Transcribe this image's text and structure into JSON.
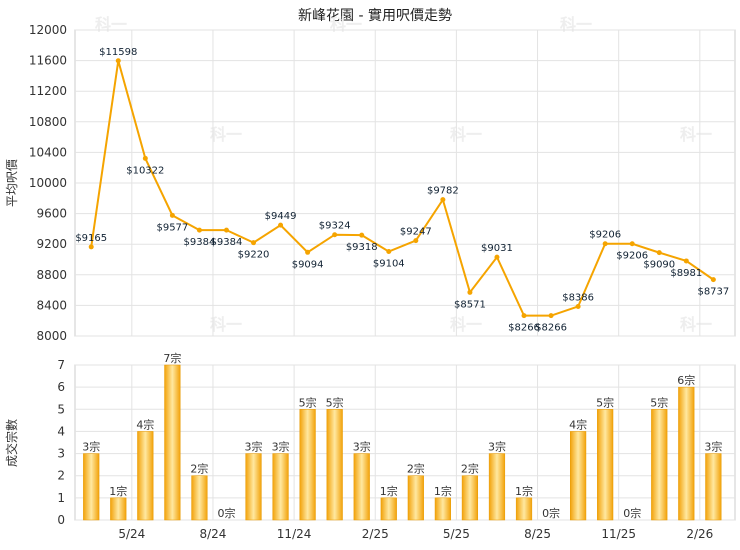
{
  "title": "新峰花園 - 實用呎價走勢",
  "watermark": "科一",
  "colors": {
    "line": "#f5a400",
    "bar": "#f2a20a",
    "barLight": "#ffe8a0",
    "grid": "#e3e3e3"
  },
  "chart_data": [
    {
      "type": "line",
      "ylabel": "平均呎價",
      "ylim": [
        8000,
        12000
      ],
      "yticks": [
        8000,
        8400,
        8800,
        9200,
        9600,
        10000,
        10400,
        10800,
        11200,
        11600,
        12000
      ],
      "values": [
        9165,
        11598,
        10322,
        9577,
        9384,
        9384,
        9220,
        9449,
        9094,
        9324,
        9318,
        9104,
        9247,
        9782,
        8571,
        9031,
        8266,
        8266,
        8386,
        9206,
        9206,
        9090,
        8981,
        8737
      ],
      "labels": [
        "$9165",
        "$11598",
        "$10322",
        "$9577",
        "$9384",
        "$9384",
        "$9220",
        "$9449",
        "$9094",
        "$9324",
        "$9318",
        "$9104",
        "$9247",
        "$9782",
        "$8571",
        "$9031",
        "$8266",
        "$8266",
        "$8386",
        "$9206",
        "$9206",
        "$9090",
        "$8981",
        "$8737"
      ]
    },
    {
      "type": "bar",
      "ylabel": "成交宗數",
      "ylim": [
        0,
        7
      ],
      "yticks": [
        0,
        1,
        2,
        3,
        4,
        5,
        6,
        7
      ],
      "values": [
        3,
        1,
        4,
        7,
        2,
        0,
        3,
        3,
        5,
        5,
        3,
        1,
        2,
        1,
        2,
        3,
        1,
        0,
        4,
        5,
        0,
        5,
        6,
        3
      ],
      "labels": [
        "3宗",
        "1宗",
        "4宗",
        "7宗",
        "2宗",
        "0宗",
        "3宗",
        "3宗",
        "5宗",
        "5宗",
        "3宗",
        "1宗",
        "2宗",
        "1宗",
        "2宗",
        "3宗",
        "1宗",
        "0宗",
        "4宗",
        "5宗",
        "0宗",
        "5宗",
        "6宗",
        "3宗"
      ],
      "xticks": [
        "5/24",
        "8/24",
        "11/24",
        "2/25",
        "5/25",
        "8/25",
        "11/25",
        "2/26"
      ]
    }
  ]
}
